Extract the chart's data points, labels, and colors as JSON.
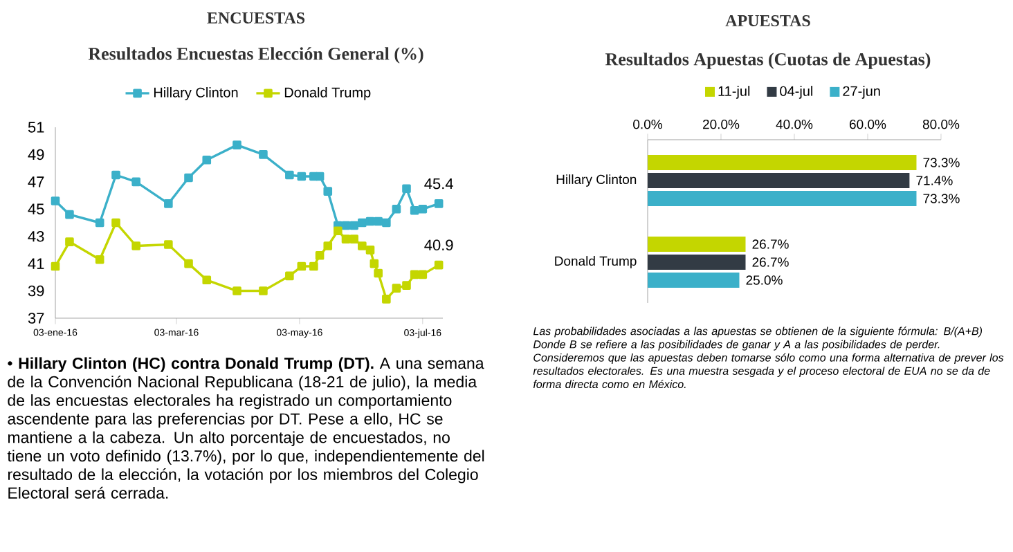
{
  "chart_data": [
    {
      "type": "line",
      "title": "ENCUESTAS",
      "subtitle": "Resultados Encuestas Elección General (%)",
      "xlim": [
        "2016-01-03",
        "2016-07-13"
      ],
      "xticks": [
        {
          "value": "2016-01-03",
          "label": "03-ene-16"
        },
        {
          "value": "2016-03-03",
          "label": "03-mar-16"
        },
        {
          "value": "2016-05-03",
          "label": "03-may-16"
        },
        {
          "value": "2016-07-03",
          "label": "03-jul-16"
        }
      ],
      "ylim": [
        37,
        51
      ],
      "yticks": [
        37,
        39,
        41,
        43,
        45,
        47,
        49,
        51
      ],
      "legend": "top",
      "marker": "square",
      "line_style": "solid",
      "grid": false,
      "series": [
        {
          "name": "Hillary Clinton",
          "color": "#3bb0c9",
          "x": [
            "2016-01-03",
            "2016-01-10",
            "2016-01-25",
            "2016-02-02",
            "2016-02-12",
            "2016-02-28",
            "2016-03-09",
            "2016-03-18",
            "2016-04-02",
            "2016-04-15",
            "2016-04-28",
            "2016-05-04",
            "2016-05-10",
            "2016-05-13",
            "2016-05-17",
            "2016-05-22",
            "2016-05-26",
            "2016-05-30",
            "2016-06-03",
            "2016-06-07",
            "2016-06-11",
            "2016-06-15",
            "2016-06-20",
            "2016-06-25",
            "2016-06-29",
            "2016-07-03",
            "2016-07-11"
          ],
          "values": [
            45.6,
            44.6,
            44.0,
            47.5,
            47.0,
            45.4,
            47.3,
            48.6,
            49.7,
            49.0,
            47.5,
            47.4,
            47.4,
            47.4,
            46.3,
            43.8,
            43.8,
            43.8,
            44.0,
            44.1,
            44.1,
            44.0,
            45.0,
            46.5,
            44.9,
            45.0,
            45.4
          ]
        },
        {
          "name": "Donald Trump",
          "color": "#c4d600",
          "x": [
            "2016-01-03",
            "2016-01-10",
            "2016-01-25",
            "2016-02-02",
            "2016-02-12",
            "2016-02-28",
            "2016-03-09",
            "2016-03-18",
            "2016-04-02",
            "2016-04-15",
            "2016-04-28",
            "2016-05-04",
            "2016-05-10",
            "2016-05-13",
            "2016-05-17",
            "2016-05-22",
            "2016-05-26",
            "2016-05-30",
            "2016-06-03",
            "2016-06-07",
            "2016-06-09",
            "2016-06-11",
            "2016-06-15",
            "2016-06-20",
            "2016-06-25",
            "2016-06-29",
            "2016-07-03",
            "2016-07-11"
          ],
          "values": [
            40.8,
            42.6,
            41.3,
            44.0,
            42.3,
            42.4,
            41.0,
            39.8,
            39.0,
            39.0,
            40.1,
            40.8,
            40.8,
            41.6,
            42.3,
            43.4,
            42.8,
            42.8,
            42.3,
            42.0,
            41.0,
            40.3,
            38.4,
            39.2,
            39.4,
            40.2,
            40.2,
            40.9
          ]
        }
      ],
      "annotations": [
        {
          "text": "45.4",
          "x": "2016-07-11",
          "y": 45.4
        },
        {
          "text": "40.9",
          "x": "2016-07-11",
          "y": 40.9
        },
        "• **Hillary Clinton (HC) contra Donald Trump (DT).** A una semana de la Convención Nacional Republicana (18-21 de julio), la media de las encuestas electorales ha registrado un comportamiento ascendente para las preferencias por DT. Pese a ello, HC se mantiene a la cabeza. Un alto porcentaje de encuestados, no tiene un voto definido (13.7%), por lo que, independientemente del resultado de la elección, la votación por los miembros del Colegio Electoral será cerrada."
      ]
    },
    {
      "type": "bar",
      "orientation": "horizontal",
      "title": "APUESTAS",
      "subtitle": "Resultados Apuestas (Cuotas de Apuestas)",
      "categories": [
        "Hillary Clinton",
        "Donald Trump"
      ],
      "xlim": [
        0,
        80
      ],
      "xticks": [
        {
          "value": 0,
          "label": "0.0%"
        },
        {
          "value": 20,
          "label": "20.0%"
        },
        {
          "value": 40,
          "label": "40.0%"
        },
        {
          "value": 60,
          "label": "60.0%"
        },
        {
          "value": 80,
          "label": "80.0%"
        }
      ],
      "legend": "top",
      "grid": false,
      "series": [
        {
          "name": "11-jul",
          "color": "#c4d600",
          "values": [
            73.3,
            26.7
          ],
          "value_labels": [
            "73.3%",
            "26.7%"
          ]
        },
        {
          "name": "04-jul",
          "color": "#323b44",
          "values": [
            71.4,
            26.7
          ],
          "value_labels": [
            "71.4%",
            "26.7%"
          ]
        },
        {
          "name": "27-jun",
          "color": "#3bb0c9",
          "values": [
            73.3,
            25.0
          ],
          "value_labels": [
            "73.3%",
            "25.0%"
          ]
        }
      ],
      "annotations": [
        "Las probabilidades asociadas a las apuestas se obtienen de la siguiente fórmula: B/(A+B)  Donde B se refiere a las posibilidades de ganar y A a las posibilidades de perder.",
        "Consideremos que las apuestas deben tomarse sólo como una forma alternativa de prever los resultados electorales. Es una muestra sesgada y el proceso electoral de EUA no se da de forma directa como en México."
      ]
    }
  ]
}
